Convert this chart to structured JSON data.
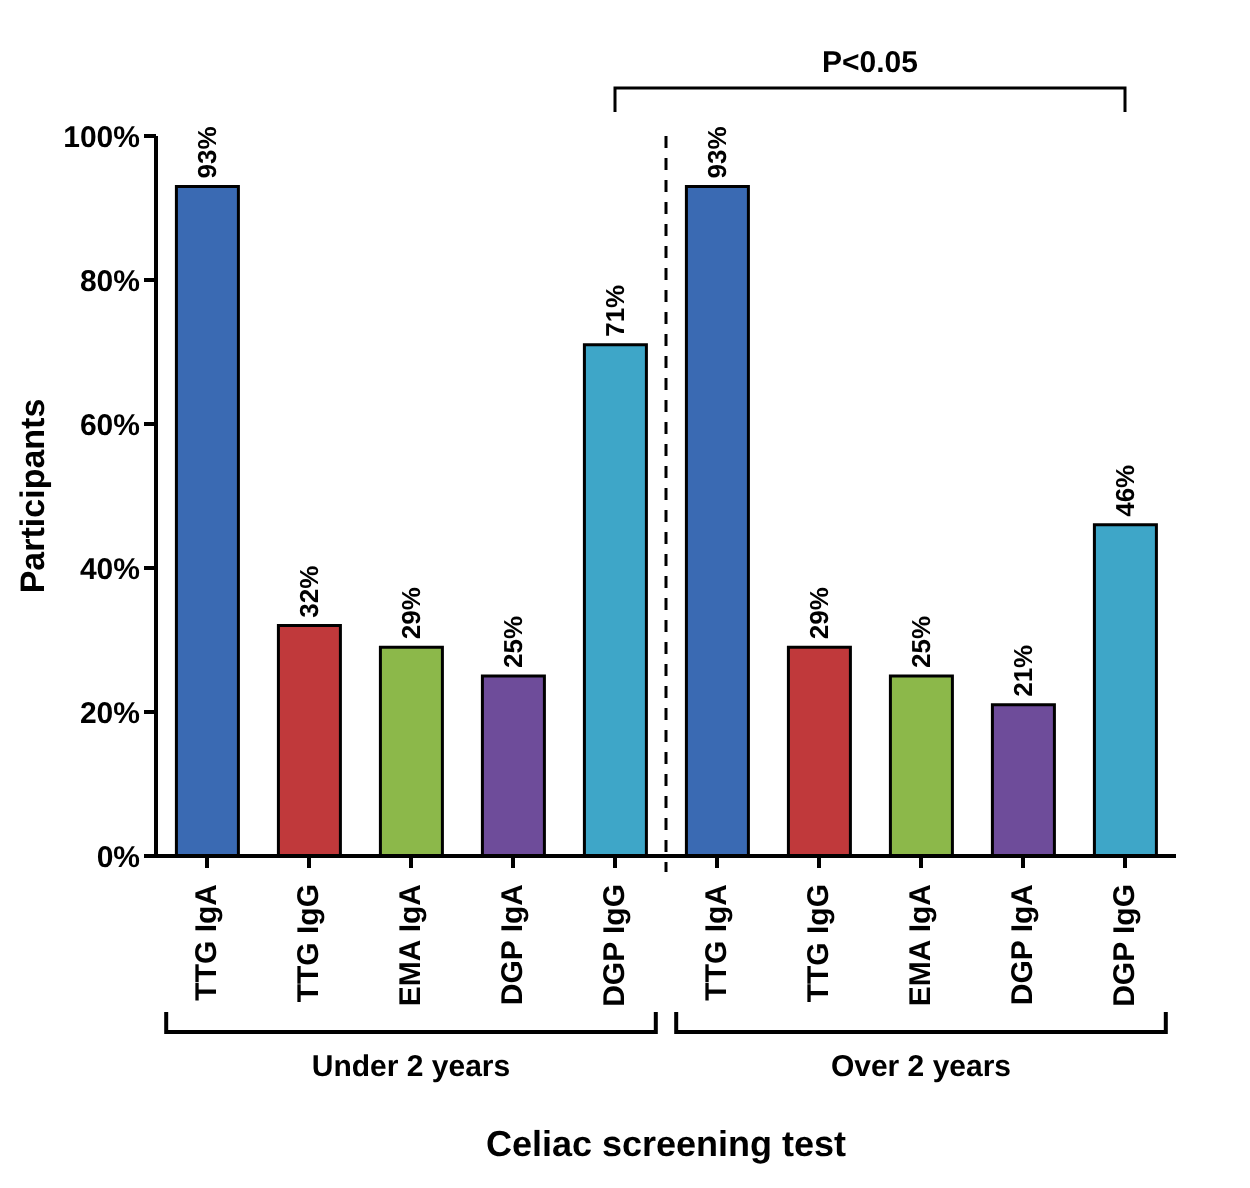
{
  "chart_data": {
    "type": "bar",
    "xlabel": "Celiac screening test",
    "ylabel": "Participants",
    "categories": [
      "TTG IgA",
      "TTG IgG",
      "EMA IgA",
      "DGP IgA",
      "DGP IgG",
      "TTG IgA",
      "TTG IgG",
      "EMA IgA",
      "DGP IgA",
      "DGP IgG"
    ],
    "values": [
      93,
      32,
      29,
      25,
      71,
      93,
      29,
      25,
      21,
      46
    ],
    "value_labels": [
      "93%",
      "32%",
      "29%",
      "25%",
      "71%",
      "93%",
      "29%",
      "25%",
      "21%",
      "46%"
    ],
    "colors": [
      "#3a6ab3",
      "#c0393b",
      "#8cb84a",
      "#6e4c9a",
      "#3ea6c8",
      "#3a6ab3",
      "#c0393b",
      "#8cb84a",
      "#6e4c9a",
      "#3ea6c8"
    ],
    "ylim": [
      0,
      100
    ],
    "yticks": [
      {
        "value": 0,
        "label": "0%"
      },
      {
        "value": 20,
        "label": "20%"
      },
      {
        "value": 40,
        "label": "40%"
      },
      {
        "value": 60,
        "label": "60%"
      },
      {
        "value": 80,
        "label": "80%"
      },
      {
        "value": 100,
        "label": "100%"
      }
    ],
    "annotations": [
      "P<0.05",
      "Under 2 years",
      "Over 2 years"
    ],
    "grid": false,
    "legend": false
  }
}
